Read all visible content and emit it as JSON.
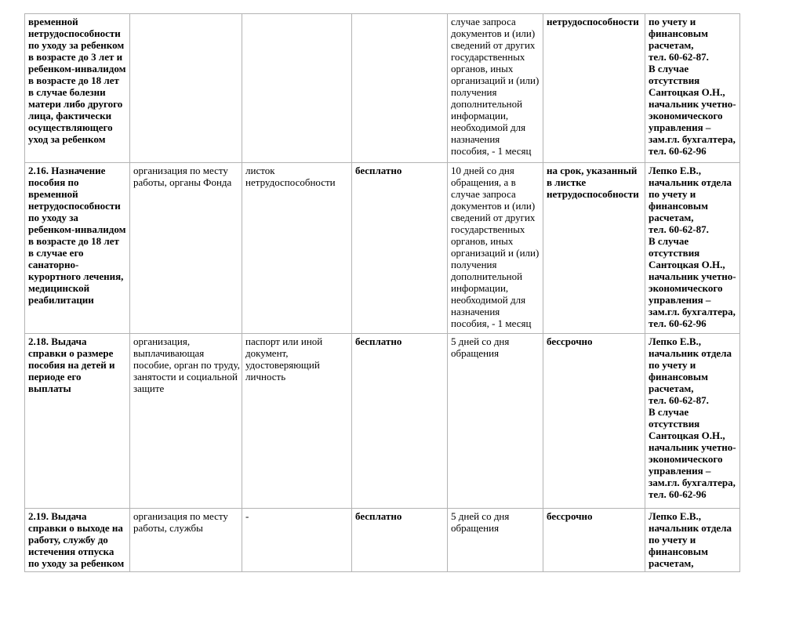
{
  "colors": {
    "table_border": "#b3b3b3",
    "text": "#000000",
    "page_background": "#ffffff"
  },
  "table": {
    "rows": [
      {
        "cells": [
          "временной\nнетрудоспособности\nпо уходу за ребенком\nв возрасте до 3 лет и\nребенком-инвалидом\nв возрасте до 18 лет\nв случае болезни\nматери либо другого\nлица, фактически\nосуществляющего\nуход за ребенком",
          "",
          "",
          "",
          "случае запроса\nдокументов и (или)\nсведений от других\nгосударственных\nорганов, иных\nорганизаций и (или)\nполучения\nдополнительной\nинформации,\nнеобходимой для\nназначения\nпособия, - 1 месяц",
          "нетрудоспособности",
          "по учету и\nфинансовым\nрасчетам,\nтел. 60-62-87.\nВ случае\nотсутствия\nСантоцкая О.Н.,\nначальник учетно-\nэкономического\nуправления –\nзам.гл. бухгалтера,\nтел. 60-62-96"
        ]
      },
      {
        "cells": [
          "2.16. Назначение\nпособия по\nвременной\nнетрудоспособности\nпо уходу за\nребенком-инвалидом\nв возрасте до 18 лет\nв случае его\nсанаторно-\nкурортного лечения,\nмедицинской\nреабилитации",
          "организация по месту\nработы, органы Фонда",
          "листок\nнетрудоспособности",
          "бесплатно",
          "10 дней со дня\nобращения, а в\nслучае запроса\nдокументов и (или)\nсведений от других\nгосударственных\nорганов, иных\nорганизаций и (или)\nполучения\nдополнительной\nинформации,\nнеобходимой для\nназначения\nпособия, - 1 месяц",
          "на срок, указанный\nв листке\nнетрудоспособности",
          "Лепко Е.В.,\nначальник отдела\nпо учету и\nфинансовым\nрасчетам,\nтел. 60-62-87.\nВ случае\nотсутствия\nСантоцкая О.Н.,\nначальник учетно-\nэкономического\nуправления –\nзам.гл. бухгалтера,\nтел. 60-62-96"
        ]
      },
      {
        "cells": [
          "2.18. Выдача\nсправки о размере\nпособия на детей и\nпериоде его\nвыплаты",
          "организация,\nвыплачивающая\nпособие, орган по труду,\nзанятости и социальной\nзащите",
          "паспорт или иной\nдокумент,\nудостоверяющий\nличность",
          "бесплатно",
          "5 дней со дня\nобращения",
          "бессрочно",
          "Лепко Е.В.,\nначальник отдела\nпо учету и\nфинансовым\nрасчетам,\nтел. 60-62-87.\nВ случае\nотсутствия\nСантоцкая О.Н.,\nначальник учетно-\nэкономического\nуправления –\nзам.гл. бухгалтера,\nтел. 60-62-96"
        ]
      },
      {
        "cells": [
          "2.19. Выдача\nсправки о выходе на\nработу, службу до\nистечения отпуска\nпо уходу за ребенком",
          "организация по месту\nработы, службы",
          "-",
          "бесплатно",
          "5 дней со дня\nобращения",
          "бессрочно",
          "Лепко Е.В.,\nначальник отдела\nпо учету и\nфинансовым\nрасчетам,"
        ]
      }
    ]
  }
}
